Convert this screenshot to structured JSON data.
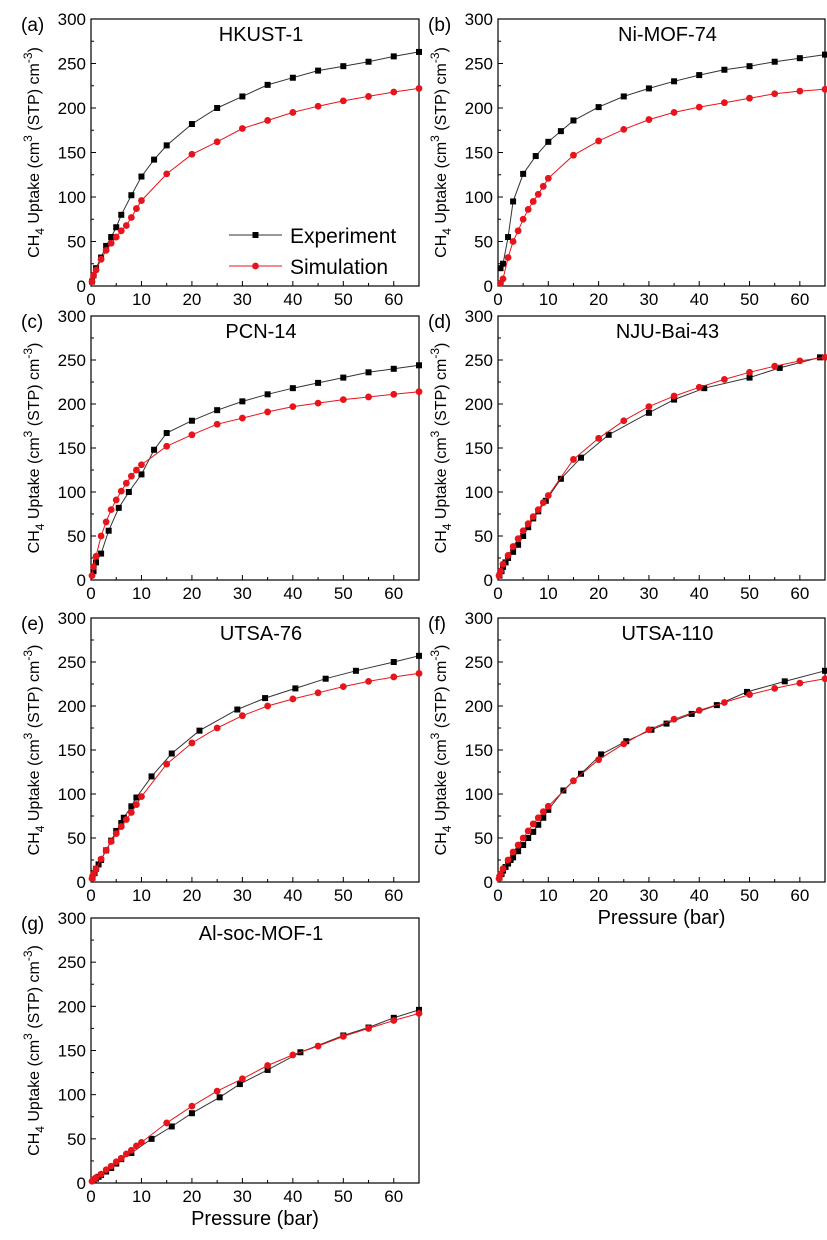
{
  "legend": {
    "experiment": "Experiment",
    "simulation": "Simulation"
  },
  "colors": {
    "experiment": "#000000",
    "simulation": "#e8141b",
    "line_exp": "#333333",
    "line_sim": "#e8141b"
  },
  "y_axis_title": {
    "base": "CH",
    "sub": "4",
    "mid": " Uptake (cm",
    "sup3": "3",
    "tail": " (STP) cm",
    "supneg": "-3",
    "close": ")"
  },
  "chart_data": [
    {
      "type": "scatter",
      "panel": "(a)",
      "title": "HKUST-1",
      "xlabel": "",
      "ylabel": "CH4 Uptake (cm3 (STP) cm-3)",
      "xlim": [
        0,
        65
      ],
      "ylim": [
        0,
        300
      ],
      "xticks": [
        0,
        10,
        20,
        30,
        40,
        50,
        60
      ],
      "yticks": [
        0,
        50,
        100,
        150,
        200,
        250,
        300
      ],
      "legend": "inside-center-right",
      "series": [
        {
          "name": "Experiment",
          "x": [
            0.2,
            0.5,
            1,
            2,
            3,
            4,
            5,
            6,
            8,
            10,
            12.5,
            15,
            20,
            25,
            30,
            35,
            40,
            45,
            50,
            55,
            60,
            65
          ],
          "y": [
            5,
            12,
            20,
            32,
            45,
            55,
            66,
            80,
            102,
            123,
            142,
            158,
            182,
            200,
            213,
            226,
            234,
            242,
            247,
            252,
            258,
            263
          ]
        },
        {
          "name": "Simulation",
          "x": [
            0.2,
            0.5,
            1,
            2,
            3,
            4,
            5,
            6,
            7,
            8,
            9,
            10,
            15,
            20,
            25,
            30,
            35,
            40,
            45,
            50,
            55,
            60,
            65
          ],
          "y": [
            5,
            12,
            18,
            30,
            40,
            48,
            55,
            62,
            68,
            77,
            87,
            96,
            126,
            148,
            162,
            177,
            186,
            195,
            202,
            208,
            213,
            218,
            222
          ]
        }
      ]
    },
    {
      "type": "scatter",
      "panel": "(b)",
      "title": "Ni-MOF-74",
      "xlabel": "",
      "ylabel": "CH4 Uptake (cm3 (STP) cm-3)",
      "xlim": [
        0,
        65
      ],
      "ylim": [
        0,
        300
      ],
      "xticks": [
        0,
        10,
        20,
        30,
        40,
        50,
        60
      ],
      "yticks": [
        0,
        50,
        100,
        150,
        200,
        250,
        300
      ],
      "series": [
        {
          "name": "Experiment",
          "x": [
            0.5,
            1,
            2,
            3,
            5,
            7.5,
            10,
            12.5,
            15,
            20,
            25,
            30,
            35,
            40,
            45,
            50,
            55,
            60,
            65
          ],
          "y": [
            20,
            25,
            55,
            95,
            126,
            146,
            162,
            174,
            186,
            201,
            213,
            222,
            230,
            237,
            243,
            247,
            252,
            256,
            260
          ]
        },
        {
          "name": "Simulation",
          "x": [
            0.5,
            1,
            2,
            3,
            4,
            5,
            6,
            7,
            8,
            9,
            10,
            15,
            20,
            25,
            30,
            35,
            40,
            45,
            50,
            55,
            60,
            65
          ],
          "y": [
            3,
            8,
            32,
            50,
            62,
            75,
            86,
            95,
            103,
            112,
            121,
            147,
            163,
            176,
            187,
            195,
            201,
            206,
            211,
            216,
            219,
            221
          ]
        }
      ]
    },
    {
      "type": "scatter",
      "panel": "(c)",
      "title": "PCN-14",
      "xlabel": "",
      "ylabel": "CH4 Uptake (cm3 (STP) cm-3)",
      "xlim": [
        0,
        65
      ],
      "ylim": [
        0,
        300
      ],
      "xticks": [
        0,
        10,
        20,
        30,
        40,
        50,
        60
      ],
      "yticks": [
        0,
        50,
        100,
        150,
        200,
        250,
        300
      ],
      "series": [
        {
          "name": "Experiment",
          "x": [
            0.5,
            1,
            2,
            3.5,
            5.5,
            7.5,
            10,
            12.5,
            15,
            20,
            25,
            30,
            35,
            40,
            45,
            50,
            55,
            60,
            65
          ],
          "y": [
            10,
            20,
            30,
            56,
            82,
            100,
            120,
            148,
            167,
            181,
            193,
            203,
            211,
            218,
            224,
            230,
            236,
            240,
            244
          ]
        },
        {
          "name": "Simulation",
          "x": [
            0.2,
            0.5,
            1,
            2,
            3,
            4,
            5,
            6,
            7,
            8,
            9,
            10,
            15,
            20,
            25,
            30,
            35,
            40,
            45,
            50,
            55,
            60,
            65
          ],
          "y": [
            5,
            15,
            27,
            50,
            66,
            80,
            91,
            101,
            110,
            118,
            125,
            131,
            152,
            165,
            177,
            184,
            191,
            197,
            201,
            205,
            208,
            211,
            214
          ]
        }
      ]
    },
    {
      "type": "scatter",
      "panel": "(d)",
      "title": "NJU-Bai-43",
      "xlabel": "",
      "ylabel": "CH4 Uptake (cm3 (STP) cm-3)",
      "xlim": [
        0,
        65
      ],
      "ylim": [
        0,
        300
      ],
      "xticks": [
        0,
        10,
        20,
        30,
        40,
        50,
        60
      ],
      "yticks": [
        0,
        50,
        100,
        150,
        200,
        250,
        300
      ],
      "series": [
        {
          "name": "Experiment",
          "x": [
            0.3,
            0.7,
            1,
            1.5,
            2,
            3,
            4,
            5,
            6,
            7,
            8,
            9.5,
            12.5,
            16.5,
            22,
            30,
            35,
            41,
            50,
            56,
            64
          ],
          "y": [
            5,
            10,
            15,
            20,
            25,
            32,
            40,
            50,
            60,
            70,
            78,
            90,
            115,
            139,
            165,
            190,
            205,
            218,
            230,
            241,
            253
          ]
        },
        {
          "name": "Simulation",
          "x": [
            0.2,
            0.5,
            1,
            2,
            3,
            4,
            5,
            6,
            7,
            8,
            9,
            10,
            15,
            20,
            25,
            30,
            35,
            40,
            45,
            50,
            55,
            60,
            65
          ],
          "y": [
            5,
            10,
            18,
            28,
            38,
            47,
            56,
            64,
            72,
            80,
            88,
            96,
            137,
            161,
            181,
            197,
            209,
            219,
            228,
            236,
            243,
            249,
            253
          ]
        }
      ]
    },
    {
      "type": "scatter",
      "panel": "(e)",
      "title": "UTSA-76",
      "xlabel": "",
      "ylabel": "CH4 Uptake (cm3 (STP) cm-3)",
      "xlim": [
        0,
        65
      ],
      "ylim": [
        0,
        300
      ],
      "xticks": [
        0,
        10,
        20,
        30,
        40,
        50,
        60
      ],
      "yticks": [
        0,
        50,
        100,
        150,
        200,
        250,
        300
      ],
      "series": [
        {
          "name": "Experiment",
          "x": [
            0.3,
            0.7,
            1,
            1.5,
            2,
            3,
            4,
            5,
            6,
            6.5,
            8,
            9,
            12,
            16,
            21.5,
            29,
            34.5,
            40.5,
            46.5,
            52.5,
            60,
            65
          ],
          "y": [
            5,
            10,
            15,
            20,
            25,
            36,
            47,
            58,
            67,
            73,
            86,
            96,
            120,
            146,
            172,
            196,
            209,
            220,
            231,
            240,
            250,
            257
          ]
        },
        {
          "name": "Simulation",
          "x": [
            0.2,
            0.5,
            1,
            2,
            3,
            4,
            5,
            6,
            7,
            8,
            9,
            10,
            15,
            20,
            25,
            30,
            35,
            40,
            45,
            50,
            55,
            60,
            65
          ],
          "y": [
            4,
            9,
            15,
            26,
            36,
            46,
            55,
            63,
            71,
            79,
            88,
            97,
            134,
            158,
            175,
            189,
            200,
            208,
            215,
            222,
            228,
            233,
            237
          ]
        }
      ]
    },
    {
      "type": "scatter",
      "panel": "(f)",
      "title": "UTSA-110",
      "xlabel": "Pressure (bar)",
      "ylabel": "CH4 Uptake (cm3 (STP) cm-3)",
      "xlim": [
        0,
        65
      ],
      "ylim": [
        0,
        300
      ],
      "xticks": [
        0,
        10,
        20,
        30,
        40,
        50,
        60
      ],
      "yticks": [
        0,
        50,
        100,
        150,
        200,
        250,
        300
      ],
      "series": [
        {
          "name": "Experiment",
          "x": [
            0.3,
            0.7,
            1,
            1.5,
            2,
            2.5,
            3,
            4,
            5,
            6,
            7,
            8,
            9,
            10,
            13,
            16.5,
            20.5,
            25.5,
            30.5,
            33.5,
            38.5,
            43.5,
            49.5,
            57,
            65
          ],
          "y": [
            5,
            9,
            13,
            17,
            21,
            25,
            28,
            35,
            42,
            50,
            57,
            65,
            73,
            82,
            104,
            123,
            145,
            160,
            173,
            180,
            191,
            201,
            216,
            228,
            240
          ]
        },
        {
          "name": "Simulation",
          "x": [
            0.2,
            0.5,
            1,
            2,
            3,
            4,
            5,
            6,
            7,
            8,
            9,
            10,
            15,
            20,
            25,
            30,
            35,
            40,
            45,
            50,
            55,
            60,
            65
          ],
          "y": [
            4,
            9,
            15,
            25,
            34,
            42,
            50,
            58,
            66,
            73,
            80,
            86,
            115,
            139,
            157,
            173,
            185,
            195,
            204,
            213,
            220,
            226,
            231
          ]
        }
      ]
    },
    {
      "type": "scatter",
      "panel": "(g)",
      "title": "Al-soc-MOF-1",
      "xlabel": "Pressure (bar)",
      "ylabel": "CH4 Uptake (cm3 (STP) cm-3)",
      "xlim": [
        0,
        65
      ],
      "ylim": [
        0,
        300
      ],
      "xticks": [
        0,
        10,
        20,
        30,
        40,
        50,
        60
      ],
      "yticks": [
        0,
        50,
        100,
        150,
        200,
        250,
        300
      ],
      "series": [
        {
          "name": "Experiment",
          "x": [
            0.5,
            1,
            1.5,
            2,
            3,
            4,
            5,
            6,
            8,
            12,
            16,
            20,
            25.5,
            29.5,
            35,
            41.5,
            50,
            55,
            60,
            65
          ],
          "y": [
            3,
            5,
            7,
            9,
            13,
            17,
            22,
            27,
            34,
            50,
            64,
            79,
            97,
            112,
            128,
            148,
            167,
            176,
            187,
            196
          ]
        },
        {
          "name": "Simulation",
          "x": [
            0.2,
            0.5,
            1,
            2,
            3,
            4,
            5,
            6,
            7,
            8,
            9,
            10,
            15,
            20,
            25,
            30,
            35,
            40,
            45,
            50,
            55,
            60,
            65
          ],
          "y": [
            2,
            4,
            6,
            10,
            15,
            19,
            24,
            28,
            33,
            37,
            42,
            46,
            68,
            87,
            104,
            118,
            133,
            145,
            155,
            166,
            175,
            184,
            192
          ]
        }
      ]
    }
  ]
}
